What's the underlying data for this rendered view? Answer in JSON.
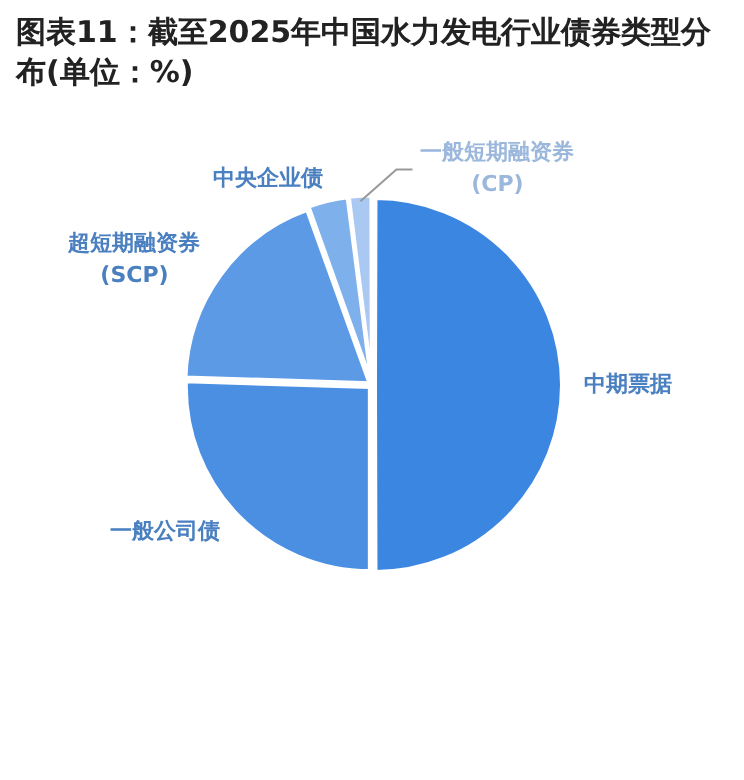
{
  "chart_data": {
    "type": "pie",
    "title": "图表11：截至2025年中国水力发电行业债券类型分布(单位：%)",
    "categories": [
      "中期票据",
      "一般公司债",
      "超短期融资券\n(SCP)",
      "中央企业债",
      "一般短期融资券\n(CP)"
    ],
    "values": [
      50,
      25.5,
      19,
      3.5,
      2
    ],
    "colors": [
      "#3a86e0",
      "#4a8fe2",
      "#5c9ae6",
      "#7eb0ec",
      "#a9c9f2"
    ],
    "legend": false
  }
}
